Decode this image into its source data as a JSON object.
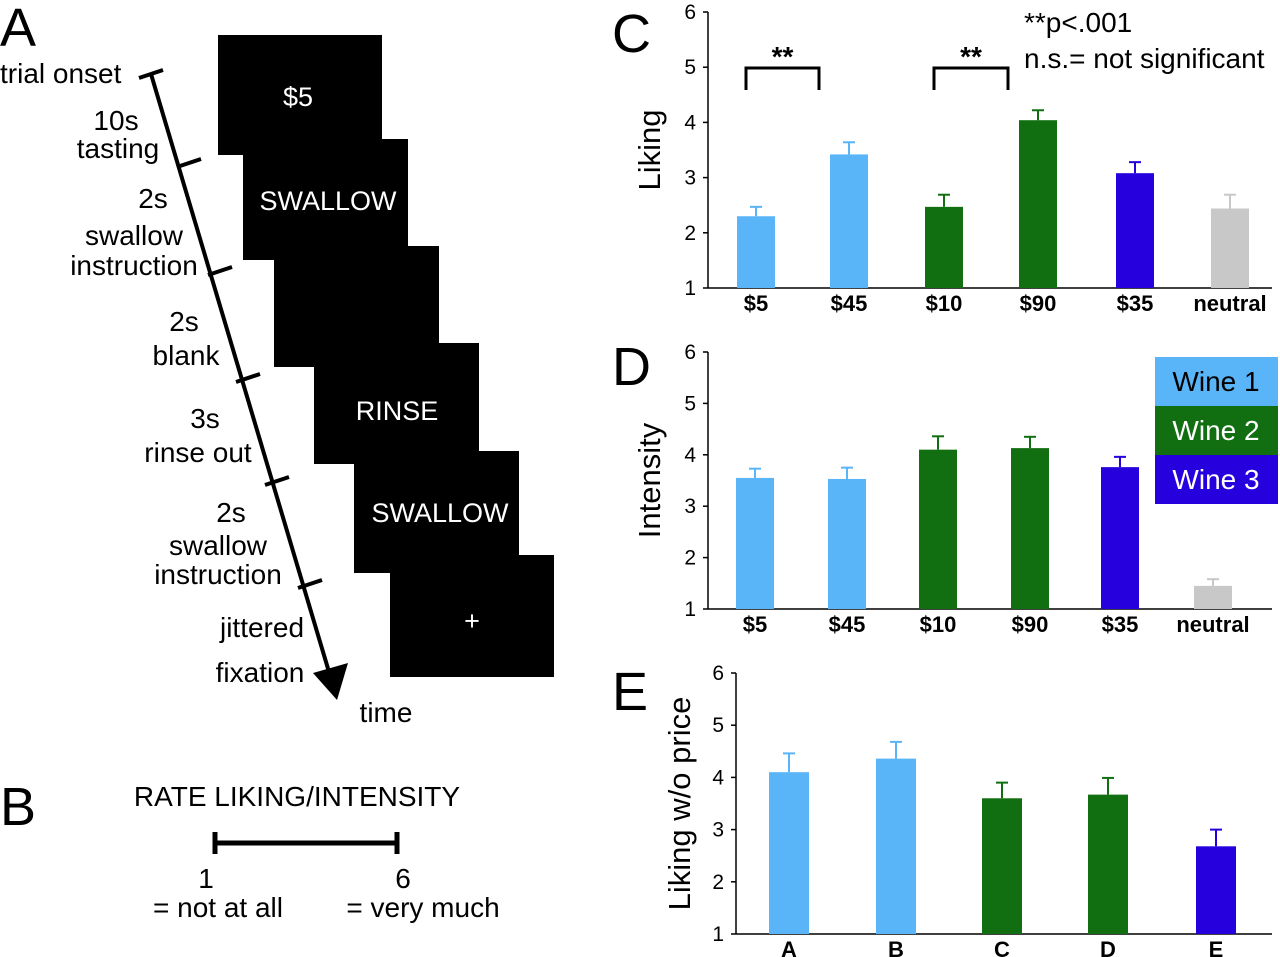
{
  "panels": {
    "A": "A",
    "B": "B",
    "C": "C",
    "D": "D",
    "E": "E"
  },
  "timeline": {
    "labels": [
      "trial onset",
      "10s",
      "tasting",
      "2s",
      "swallow",
      "instruction",
      "2s",
      "blank",
      "3s",
      "rinse out",
      "2s",
      "swallow",
      "instruction",
      "jittered",
      "fixation"
    ],
    "time_label": "time",
    "screens": [
      "$5",
      "SWALLOW",
      "",
      "RINSE",
      "SWALLOW",
      "+"
    ]
  },
  "rating": {
    "title": "RATE LIKING/INTENSITY",
    "low_value": "1",
    "low_desc": "= not at all",
    "high_value": "6",
    "high_desc": "= very much"
  },
  "legend": [
    {
      "label": "Wine 1",
      "color": "#5ab4f8"
    },
    {
      "label": "Wine 2",
      "color": "#116e11"
    },
    {
      "label": "Wine 3",
      "color": "#2600dd"
    }
  ],
  "significance": {
    "stars": "**",
    "p_text": "**p<.001",
    "ns_text": "n.s.= not significant"
  },
  "chart_data": [
    {
      "panel": "C",
      "type": "bar",
      "ylabel": "Liking",
      "ylim": [
        1,
        6
      ],
      "yticks": [
        "1",
        "2",
        "3",
        "4",
        "5",
        "6"
      ],
      "categories": [
        "$5",
        "$45",
        "$10",
        "$90",
        "$35",
        "neutral"
      ],
      "values": [
        2.3,
        3.42,
        2.47,
        4.04,
        3.08,
        2.44
      ],
      "errors": [
        0.17,
        0.22,
        0.22,
        0.18,
        0.2,
        0.25
      ],
      "colors": [
        "#5ab4f8",
        "#5ab4f8",
        "#116e11",
        "#116e11",
        "#2600dd",
        "#c8c8c8"
      ],
      "comparisons": [
        [
          0,
          1
        ],
        [
          2,
          3
        ]
      ]
    },
    {
      "panel": "D",
      "type": "bar",
      "ylabel": "Intensity",
      "ylim": [
        1,
        6
      ],
      "yticks": [
        "1",
        "2",
        "3",
        "4",
        "5",
        "6"
      ],
      "categories": [
        "$5",
        "$45",
        "$10",
        "$90",
        "$35",
        "neutral"
      ],
      "values": [
        3.55,
        3.53,
        4.1,
        4.13,
        3.76,
        1.45
      ],
      "errors": [
        0.18,
        0.22,
        0.26,
        0.22,
        0.2,
        0.13
      ],
      "colors": [
        "#5ab4f8",
        "#5ab4f8",
        "#116e11",
        "#116e11",
        "#2600dd",
        "#c8c8c8"
      ]
    },
    {
      "panel": "E",
      "type": "bar",
      "ylabel": "Liking w/o price",
      "ylim": [
        1,
        6
      ],
      "yticks": [
        "1",
        "2",
        "3",
        "4",
        "5",
        "6"
      ],
      "categories": [
        "A",
        "B",
        "C",
        "D",
        "E"
      ],
      "values": [
        4.1,
        4.36,
        3.6,
        3.67,
        2.68
      ],
      "errors": [
        0.36,
        0.32,
        0.3,
        0.32,
        0.32
      ],
      "colors": [
        "#5ab4f8",
        "#5ab4f8",
        "#116e11",
        "#116e11",
        "#2600dd"
      ]
    }
  ]
}
